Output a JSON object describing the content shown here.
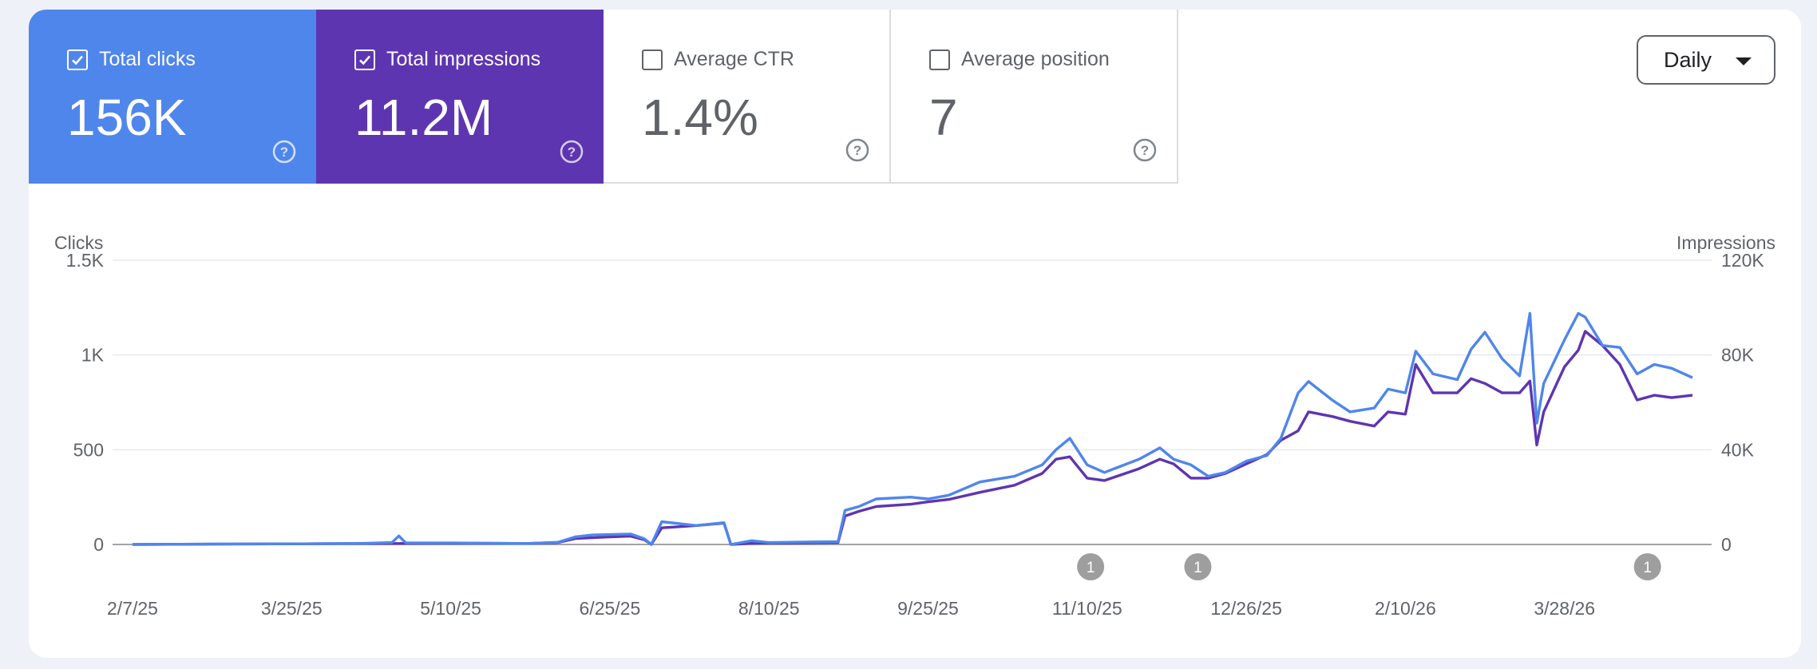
{
  "metrics": [
    {
      "label": "Total clicks",
      "value": "156K",
      "checked": true
    },
    {
      "label": "Total impressions",
      "value": "11.2M",
      "checked": true
    },
    {
      "label": "Average CTR",
      "value": "1.4%",
      "checked": false
    },
    {
      "label": "Average position",
      "value": "7",
      "checked": false
    }
  ],
  "period_select": {
    "value": "Daily"
  },
  "colors": {
    "clicks": "#4f86ec",
    "impressions": "#5e35b1",
    "grid": "#e8eaed",
    "annotation": "#9e9e9e"
  },
  "chart_data": {
    "type": "line",
    "left_axis": {
      "label": "Clicks",
      "ticks": [
        "0",
        "500",
        "1K",
        "1.5K"
      ],
      "values": [
        0,
        500,
        1000,
        1500
      ],
      "range": [
        0,
        1500
      ]
    },
    "right_axis": {
      "label": "Impressions",
      "ticks": [
        "0",
        "40K",
        "80K",
        "120K"
      ],
      "values": [
        0,
        40000,
        80000,
        120000
      ],
      "range": [
        0,
        120000
      ]
    },
    "x_tick_labels": [
      "2/7/25",
      "3/25/25",
      "5/10/25",
      "6/25/25",
      "8/10/25",
      "9/25/25",
      "11/10/25",
      "12/26/25",
      "2/10/26",
      "3/28/26"
    ],
    "x_range": [
      "2/7/25",
      "5/4/26"
    ],
    "annotations": [
      {
        "date": "11/11/25",
        "label": "1"
      },
      {
        "date": "12/12/25",
        "label": "1"
      },
      {
        "date": "4/21/26",
        "label": "1"
      }
    ],
    "series": [
      {
        "name": "Clicks",
        "axis": "left",
        "color": "#4f86ec",
        "points": [
          [
            "2/7/25",
            0
          ],
          [
            "3/1/25",
            2
          ],
          [
            "4/1/25",
            4
          ],
          [
            "4/15/25",
            6
          ],
          [
            "4/23/25",
            10
          ],
          [
            "4/25/25",
            45
          ],
          [
            "4/27/25",
            8
          ],
          [
            "5/10/25",
            8
          ],
          [
            "6/1/25",
            5
          ],
          [
            "6/10/25",
            12
          ],
          [
            "6/15/25",
            40
          ],
          [
            "6/20/25",
            50
          ],
          [
            "7/1/25",
            55
          ],
          [
            "7/5/25",
            30
          ],
          [
            "7/7/25",
            0
          ],
          [
            "7/10/25",
            120
          ],
          [
            "7/20/25",
            100
          ],
          [
            "7/28/25",
            115
          ],
          [
            "7/30/25",
            0
          ],
          [
            "8/5/25",
            20
          ],
          [
            "8/10/25",
            10
          ],
          [
            "8/30/25",
            15
          ],
          [
            "9/1/25",
            180
          ],
          [
            "9/5/25",
            200
          ],
          [
            "9/10/25",
            240
          ],
          [
            "9/20/25",
            250
          ],
          [
            "9/25/25",
            240
          ],
          [
            "10/1/25",
            260
          ],
          [
            "10/10/25",
            330
          ],
          [
            "10/20/25",
            360
          ],
          [
            "10/28/25",
            420
          ],
          [
            "11/1/25",
            500
          ],
          [
            "11/5/25",
            560
          ],
          [
            "11/10/25",
            420
          ],
          [
            "11/15/25",
            380
          ],
          [
            "11/25/25",
            450
          ],
          [
            "12/1/25",
            510
          ],
          [
            "12/5/25",
            450
          ],
          [
            "12/10/25",
            420
          ],
          [
            "12/15/25",
            360
          ],
          [
            "12/20/25",
            380
          ],
          [
            "12/26/25",
            440
          ],
          [
            "1/1/26",
            470
          ],
          [
            "1/5/26",
            560
          ],
          [
            "1/10/26",
            800
          ],
          [
            "1/13/26",
            860
          ],
          [
            "1/20/26",
            760
          ],
          [
            "1/25/26",
            700
          ],
          [
            "2/1/26",
            720
          ],
          [
            "2/5/26",
            820
          ],
          [
            "2/10/26",
            800
          ],
          [
            "2/13/26",
            1020
          ],
          [
            "2/18/26",
            900
          ],
          [
            "2/25/26",
            870
          ],
          [
            "3/1/26",
            1030
          ],
          [
            "3/5/26",
            1120
          ],
          [
            "3/10/26",
            980
          ],
          [
            "3/15/26",
            890
          ],
          [
            "3/18/26",
            1220
          ],
          [
            "3/20/26",
            640
          ],
          [
            "3/22/26",
            850
          ],
          [
            "3/28/26",
            1080
          ],
          [
            "4/1/26",
            1220
          ],
          [
            "4/3/26",
            1200
          ],
          [
            "4/8/26",
            1050
          ],
          [
            "4/13/26",
            1040
          ],
          [
            "4/18/26",
            900
          ],
          [
            "4/23/26",
            950
          ],
          [
            "4/28/26",
            930
          ],
          [
            "5/4/26",
            880
          ]
        ]
      },
      {
        "name": "Impressions",
        "axis": "right",
        "color": "#5e35b1",
        "points": [
          [
            "2/7/25",
            0
          ],
          [
            "3/1/25",
            150
          ],
          [
            "4/1/25",
            300
          ],
          [
            "4/25/25",
            400
          ],
          [
            "5/10/25",
            500
          ],
          [
            "6/1/25",
            400
          ],
          [
            "6/10/25",
            800
          ],
          [
            "6/15/25",
            2500
          ],
          [
            "6/25/25",
            3200
          ],
          [
            "7/1/25",
            3500
          ],
          [
            "7/5/25",
            2000
          ],
          [
            "7/7/25",
            0
          ],
          [
            "7/10/25",
            7000
          ],
          [
            "7/20/25",
            8000
          ],
          [
            "7/28/25",
            9000
          ],
          [
            "7/30/25",
            0
          ],
          [
            "8/5/25",
            500
          ],
          [
            "8/10/25",
            600
          ],
          [
            "8/30/25",
            800
          ],
          [
            "9/1/25",
            12000
          ],
          [
            "9/5/25",
            14000
          ],
          [
            "9/10/25",
            16000
          ],
          [
            "9/20/25",
            17000
          ],
          [
            "9/25/25",
            18000
          ],
          [
            "10/1/25",
            19000
          ],
          [
            "10/10/25",
            22000
          ],
          [
            "10/20/25",
            25000
          ],
          [
            "10/28/25",
            30000
          ],
          [
            "11/1/25",
            36000
          ],
          [
            "11/5/25",
            37000
          ],
          [
            "11/10/25",
            28000
          ],
          [
            "11/15/25",
            27000
          ],
          [
            "11/25/25",
            32000
          ],
          [
            "12/1/25",
            36000
          ],
          [
            "12/5/25",
            34000
          ],
          [
            "12/10/25",
            28000
          ],
          [
            "12/15/25",
            28000
          ],
          [
            "12/20/25",
            30000
          ],
          [
            "12/26/25",
            34000
          ],
          [
            "1/1/26",
            38000
          ],
          [
            "1/5/26",
            44000
          ],
          [
            "1/10/26",
            48000
          ],
          [
            "1/13/26",
            56000
          ],
          [
            "1/20/26",
            54000
          ],
          [
            "1/25/26",
            52000
          ],
          [
            "2/1/26",
            50000
          ],
          [
            "2/5/26",
            56000
          ],
          [
            "2/10/26",
            55000
          ],
          [
            "2/13/26",
            76000
          ],
          [
            "2/18/26",
            64000
          ],
          [
            "2/25/26",
            64000
          ],
          [
            "3/1/26",
            70000
          ],
          [
            "3/5/26",
            68000
          ],
          [
            "3/10/26",
            64000
          ],
          [
            "3/15/26",
            64000
          ],
          [
            "3/18/26",
            69000
          ],
          [
            "3/20/26",
            42000
          ],
          [
            "3/22/26",
            56000
          ],
          [
            "3/28/26",
            75000
          ],
          [
            "4/1/26",
            82000
          ],
          [
            "4/3/26",
            90000
          ],
          [
            "4/8/26",
            84000
          ],
          [
            "4/13/26",
            76000
          ],
          [
            "4/18/26",
            61000
          ],
          [
            "4/23/26",
            63000
          ],
          [
            "4/28/26",
            62000
          ],
          [
            "5/4/26",
            63000
          ]
        ]
      }
    ]
  }
}
